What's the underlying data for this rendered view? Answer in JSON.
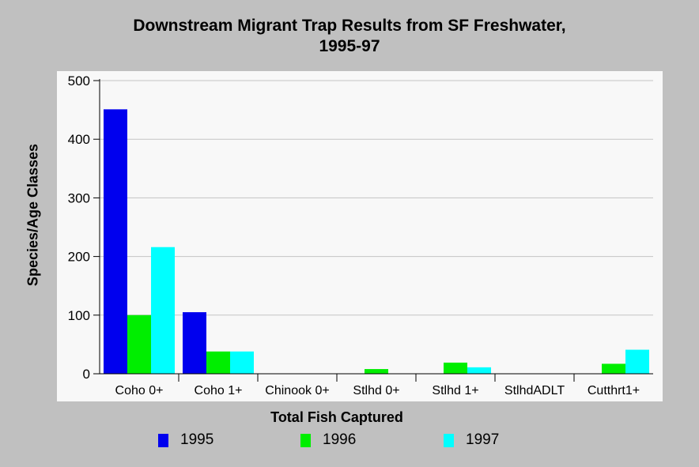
{
  "chart_data": {
    "type": "bar",
    "title": [
      "Downstream Migrant Trap Results from SF Freshwater,",
      "1995-97"
    ],
    "xlabel": "Total Fish Captured",
    "ylabel": "Species/Age Classes",
    "ylim": [
      0,
      500
    ],
    "yticks": [
      0,
      100,
      200,
      300,
      400,
      500
    ],
    "grid": true,
    "legend_position": "bottom",
    "categories": [
      "Coho 0+",
      "Coho 1+",
      "Chinook 0+",
      "Stlhd 0+",
      "Stlhd 1+",
      "StlhdADLT",
      "Cutthrt1+"
    ],
    "series": [
      {
        "name": "1995",
        "color": "#0000ee",
        "values": [
          451,
          105,
          0,
          0,
          0,
          0,
          0
        ]
      },
      {
        "name": "1996",
        "color": "#00ee00",
        "values": [
          100,
          38,
          0,
          8,
          19,
          0,
          17
        ]
      },
      {
        "name": "1997",
        "color": "#00ffff",
        "values": [
          216,
          38,
          0,
          0,
          11,
          0,
          41
        ]
      }
    ]
  }
}
